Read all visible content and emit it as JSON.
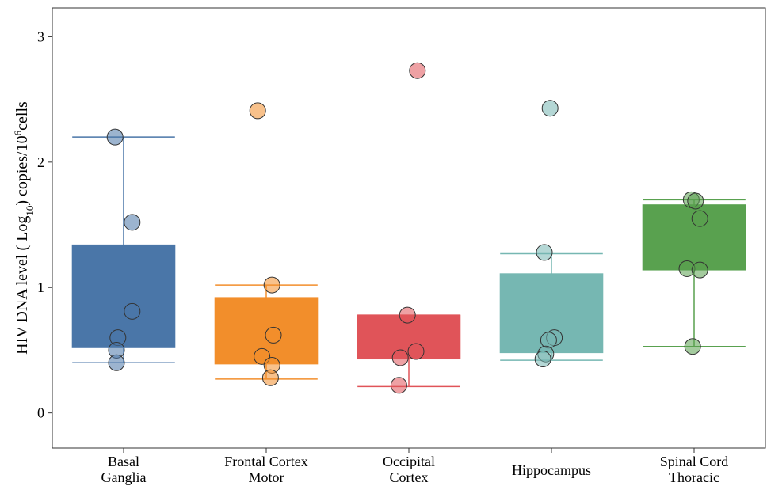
{
  "chart_data": {
    "type": "box",
    "ylabel_parts": {
      "main": "HIV DNA level ( Log",
      "sub": "10",
      "mid": ") copies/10",
      "sup": "6",
      "end": "cells"
    },
    "ylim": [
      -0.28,
      3.23
    ],
    "yticks": [
      "0",
      "1",
      "2",
      "3"
    ],
    "grid": false,
    "categories": [
      {
        "label_lines": [
          "Basal",
          "Ganglia"
        ],
        "color": "#4a76a8"
      },
      {
        "label_lines": [
          "Frontal Cortex",
          "Motor"
        ],
        "color": "#f28e2b"
      },
      {
        "label_lines": [
          "Occipital",
          "Cortex"
        ],
        "color": "#e05459"
      },
      {
        "label_lines": [
          "Hippocampus"
        ],
        "color": "#76b7b2"
      },
      {
        "label_lines": [
          "Spinal Cord",
          "Thoracic"
        ],
        "color": "#59a14f"
      }
    ],
    "boxes": [
      {
        "whisker_low": 0.4,
        "q1": 0.52,
        "q3": 1.34,
        "whisker_high": 2.2
      },
      {
        "whisker_low": 0.27,
        "q1": 0.39,
        "q3": 0.92,
        "whisker_high": 1.02
      },
      {
        "whisker_low": 0.21,
        "q1": 0.43,
        "q3": 0.78,
        "whisker_high": 0.78
      },
      {
        "whisker_low": 0.42,
        "q1": 0.48,
        "q3": 1.11,
        "whisker_high": 1.27
      },
      {
        "whisker_low": 0.53,
        "q1": 1.14,
        "q3": 1.66,
        "whisker_high": 1.7
      }
    ],
    "points": [
      [
        2.2,
        1.52,
        0.81,
        0.6,
        0.5,
        0.4
      ],
      [
        2.41,
        1.02,
        0.62,
        0.45,
        0.38,
        0.28
      ],
      [
        2.73,
        0.78,
        0.49,
        0.44,
        0.22
      ],
      [
        2.43,
        1.28,
        0.6,
        0.58,
        0.47,
        0.43
      ],
      [
        1.7,
        1.69,
        1.55,
        1.15,
        1.14,
        0.53
      ]
    ],
    "point_offsets": [
      [
        -0.06,
        0.06,
        0.06,
        -0.04,
        -0.05,
        -0.05
      ],
      [
        -0.06,
        0.04,
        0.05,
        -0.03,
        0.04,
        0.03
      ],
      [
        0.06,
        -0.01,
        0.05,
        -0.06,
        -0.07
      ],
      [
        -0.01,
        -0.05,
        0.02,
        -0.02,
        -0.04,
        -0.06
      ],
      [
        -0.02,
        0.01,
        0.04,
        -0.05,
        0.04,
        -0.01
      ]
    ]
  }
}
